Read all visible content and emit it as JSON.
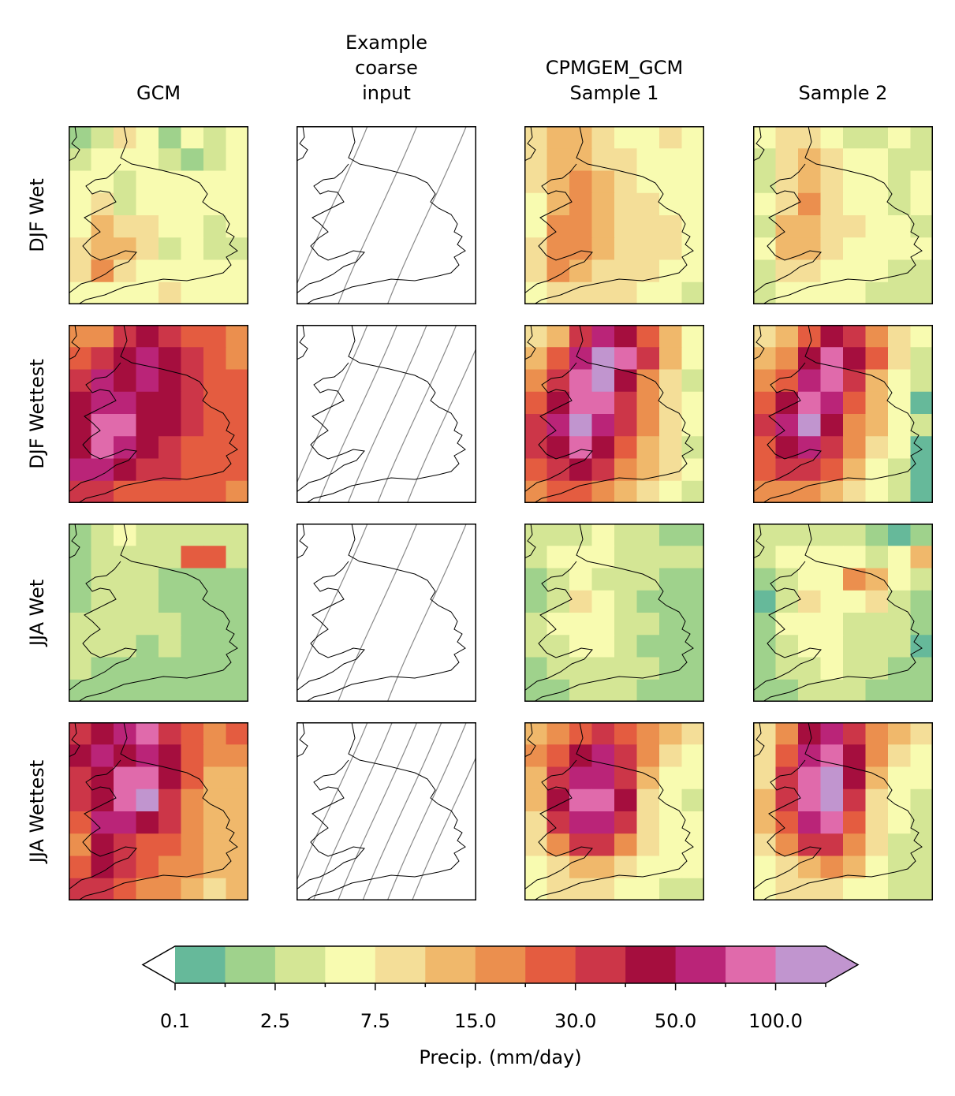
{
  "chart_data": {
    "type": "heatmap",
    "title": "",
    "columns": [
      {
        "id": "gcm",
        "title_lines": [
          "GCM"
        ]
      },
      {
        "id": "coarse",
        "title_lines": [
          "Example",
          "coarse",
          "input"
        ]
      },
      {
        "id": "sample1",
        "title_lines": [
          "CPMGEM_GCM",
          "Sample 1"
        ]
      },
      {
        "id": "sample2",
        "title_lines": [
          "Sample 2"
        ]
      }
    ],
    "rows": [
      {
        "id": "djf_wet",
        "label": "DJF Wet"
      },
      {
        "id": "djf_wettest",
        "label": "DJF Wettest"
      },
      {
        "id": "jja_wet",
        "label": "JJA Wet"
      },
      {
        "id": "jja_wettest",
        "label": "JJA Wettest"
      }
    ],
    "panel_levels": {
      "djf_wet": {
        "gcm": [
          [
            1,
            2,
            4,
            3,
            1,
            3,
            2,
            3
          ],
          [
            2,
            3,
            3,
            3,
            2,
            1,
            2,
            3
          ],
          [
            3,
            3,
            2,
            3,
            3,
            3,
            3,
            3
          ],
          [
            3,
            4,
            2,
            3,
            3,
            3,
            3,
            3
          ],
          [
            3,
            5,
            4,
            4,
            3,
            3,
            2,
            3
          ],
          [
            4,
            5,
            5,
            4,
            2,
            3,
            2,
            2
          ],
          [
            4,
            6,
            4,
            3,
            3,
            3,
            3,
            3
          ],
          [
            3,
            3,
            3,
            3,
            4,
            3,
            3,
            3
          ]
        ],
        "sample1": [
          [
            4,
            5,
            5,
            4,
            3,
            3,
            4,
            3
          ],
          [
            4,
            5,
            5,
            4,
            4,
            3,
            3,
            3
          ],
          [
            4,
            5,
            6,
            5,
            4,
            3,
            3,
            3
          ],
          [
            3,
            5,
            6,
            5,
            4,
            4,
            3,
            3
          ],
          [
            3,
            6,
            6,
            5,
            4,
            4,
            4,
            3
          ],
          [
            4,
            6,
            6,
            5,
            4,
            4,
            4,
            3
          ],
          [
            4,
            6,
            5,
            4,
            4,
            4,
            3,
            3
          ],
          [
            3,
            4,
            4,
            4,
            4,
            3,
            3,
            2
          ]
        ],
        "sample2": [
          [
            3,
            4,
            4,
            3,
            2,
            2,
            3,
            2
          ],
          [
            2,
            4,
            5,
            4,
            3,
            3,
            2,
            2
          ],
          [
            2,
            4,
            5,
            4,
            3,
            3,
            2,
            3
          ],
          [
            3,
            4,
            6,
            4,
            3,
            3,
            2,
            3
          ],
          [
            2,
            5,
            5,
            4,
            4,
            3,
            3,
            2
          ],
          [
            3,
            5,
            5,
            4,
            3,
            3,
            3,
            3
          ],
          [
            2,
            4,
            4,
            3,
            3,
            3,
            2,
            2
          ],
          [
            2,
            3,
            3,
            3,
            3,
            2,
            2,
            2
          ]
        ]
      },
      "djf_wettest": {
        "gcm": [
          [
            6,
            6,
            8,
            9,
            8,
            7,
            7,
            6
          ],
          [
            7,
            8,
            9,
            10,
            9,
            8,
            7,
            6
          ],
          [
            8,
            10,
            9,
            10,
            9,
            8,
            7,
            7
          ],
          [
            9,
            10,
            10,
            9,
            9,
            8,
            7,
            7
          ],
          [
            9,
            11,
            11,
            9,
            9,
            8,
            7,
            7
          ],
          [
            9,
            11,
            10,
            9,
            8,
            7,
            7,
            7
          ],
          [
            10,
            10,
            9,
            8,
            8,
            7,
            7,
            7
          ],
          [
            8,
            8,
            7,
            7,
            7,
            7,
            7,
            6
          ]
        ],
        "sample1": [
          [
            4,
            5,
            8,
            10,
            9,
            7,
            5,
            3
          ],
          [
            5,
            7,
            10,
            12,
            11,
            8,
            5,
            3
          ],
          [
            6,
            8,
            11,
            12,
            9,
            6,
            4,
            2
          ],
          [
            7,
            9,
            11,
            11,
            8,
            6,
            4,
            3
          ],
          [
            8,
            10,
            12,
            10,
            8,
            6,
            4,
            3
          ],
          [
            8,
            9,
            11,
            9,
            7,
            5,
            4,
            2
          ],
          [
            7,
            8,
            9,
            8,
            6,
            5,
            4,
            3
          ],
          [
            6,
            7,
            7,
            6,
            5,
            4,
            3,
            2
          ]
        ],
        "sample2": [
          [
            4,
            5,
            7,
            9,
            8,
            6,
            4,
            3
          ],
          [
            5,
            6,
            9,
            11,
            9,
            7,
            4,
            2
          ],
          [
            6,
            7,
            10,
            11,
            8,
            5,
            3,
            2
          ],
          [
            7,
            9,
            11,
            10,
            7,
            5,
            3,
            0
          ],
          [
            8,
            10,
            12,
            9,
            6,
            5,
            3,
            2
          ],
          [
            7,
            9,
            10,
            8,
            6,
            4,
            3,
            0
          ],
          [
            7,
            8,
            8,
            7,
            5,
            3,
            2,
            0
          ],
          [
            6,
            6,
            6,
            5,
            4,
            3,
            2,
            0
          ]
        ]
      },
      "jja_wet": {
        "gcm": [
          [
            1,
            2,
            3,
            2,
            2,
            2,
            2,
            2
          ],
          [
            1,
            2,
            2,
            2,
            2,
            7,
            7,
            2
          ],
          [
            1,
            2,
            2,
            2,
            1,
            1,
            1,
            1
          ],
          [
            1,
            2,
            2,
            2,
            1,
            1,
            1,
            1
          ],
          [
            2,
            2,
            2,
            2,
            2,
            1,
            1,
            1
          ],
          [
            2,
            2,
            2,
            1,
            2,
            1,
            1,
            1
          ],
          [
            2,
            1,
            1,
            1,
            1,
            1,
            1,
            1
          ],
          [
            1,
            1,
            1,
            1,
            1,
            1,
            1,
            1
          ]
        ],
        "sample1": [
          [
            2,
            2,
            2,
            3,
            2,
            2,
            1,
            1
          ],
          [
            2,
            3,
            3,
            3,
            2,
            2,
            2,
            2
          ],
          [
            1,
            2,
            3,
            2,
            2,
            2,
            1,
            1
          ],
          [
            1,
            2,
            4,
            3,
            2,
            1,
            1,
            1
          ],
          [
            2,
            3,
            3,
            3,
            2,
            2,
            1,
            1
          ],
          [
            2,
            2,
            3,
            3,
            2,
            1,
            1,
            1
          ],
          [
            1,
            2,
            2,
            2,
            2,
            2,
            1,
            1
          ],
          [
            1,
            1,
            2,
            2,
            2,
            1,
            1,
            1
          ]
        ],
        "sample2": [
          [
            2,
            2,
            2,
            2,
            2,
            1,
            0,
            1
          ],
          [
            2,
            3,
            3,
            3,
            3,
            2,
            3,
            5
          ],
          [
            1,
            2,
            3,
            3,
            6,
            5,
            3,
            2
          ],
          [
            0,
            2,
            4,
            3,
            3,
            4,
            2,
            1
          ],
          [
            1,
            3,
            3,
            3,
            2,
            2,
            2,
            1
          ],
          [
            1,
            2,
            3,
            3,
            2,
            2,
            2,
            0
          ],
          [
            1,
            2,
            2,
            3,
            2,
            2,
            1,
            1
          ],
          [
            1,
            1,
            2,
            2,
            2,
            1,
            1,
            1
          ]
        ]
      },
      "jja_wettest": {
        "gcm": [
          [
            8,
            9,
            10,
            11,
            8,
            7,
            6,
            7
          ],
          [
            9,
            10,
            9,
            10,
            9,
            7,
            6,
            6
          ],
          [
            8,
            9,
            11,
            11,
            9,
            7,
            5,
            5
          ],
          [
            8,
            9,
            11,
            12,
            8,
            6,
            5,
            5
          ],
          [
            7,
            10,
            10,
            9,
            8,
            6,
            5,
            5
          ],
          [
            6,
            9,
            8,
            7,
            7,
            6,
            5,
            5
          ],
          [
            7,
            9,
            8,
            7,
            6,
            6,
            5,
            5
          ],
          [
            8,
            8,
            7,
            6,
            6,
            5,
            4,
            5
          ]
        ],
        "sample1": [
          [
            5,
            6,
            7,
            8,
            7,
            6,
            5,
            4
          ],
          [
            6,
            7,
            9,
            10,
            8,
            6,
            4,
            3
          ],
          [
            5,
            8,
            10,
            10,
            8,
            5,
            3,
            3
          ],
          [
            5,
            9,
            11,
            11,
            9,
            4,
            3,
            2
          ],
          [
            4,
            8,
            10,
            10,
            8,
            4,
            3,
            3
          ],
          [
            4,
            6,
            8,
            8,
            6,
            4,
            3,
            3
          ],
          [
            3,
            4,
            5,
            5,
            4,
            3,
            3,
            3
          ],
          [
            3,
            4,
            4,
            4,
            3,
            3,
            2,
            2
          ]
        ],
        "sample2": [
          [
            4,
            6,
            9,
            10,
            8,
            6,
            5,
            4
          ],
          [
            4,
            7,
            10,
            11,
            9,
            6,
            4,
            3
          ],
          [
            4,
            8,
            11,
            12,
            9,
            5,
            3,
            3
          ],
          [
            5,
            8,
            11,
            12,
            8,
            4,
            3,
            2
          ],
          [
            5,
            7,
            10,
            11,
            7,
            4,
            3,
            2
          ],
          [
            4,
            6,
            8,
            8,
            6,
            4,
            2,
            2
          ],
          [
            3,
            4,
            5,
            6,
            5,
            3,
            2,
            2
          ],
          [
            3,
            4,
            4,
            4,
            3,
            3,
            2,
            2
          ]
        ]
      }
    },
    "colorbar": {
      "label": "Precip. (mm/day)",
      "colors": [
        "#66b99a",
        "#9fd28c",
        "#d4e695",
        "#f8fbb0",
        "#f4de98",
        "#f0b86b",
        "#eb8f4e",
        "#e45c40",
        "#cc3648",
        "#a50e3e",
        "#ba2478",
        "#e06aab",
        "#c195cf"
      ],
      "under_color": "#ffffff",
      "over_color": "#c195cf",
      "extend": "both",
      "tick_labels": [
        "0.1",
        "2.5",
        "7.5",
        "15.0",
        "30.0",
        "50.0",
        "100.0"
      ]
    }
  }
}
